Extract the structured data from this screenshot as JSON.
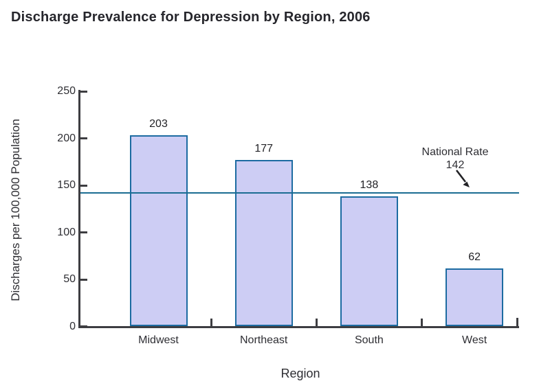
{
  "chart_data": {
    "type": "bar",
    "title": "Discharge Prevalence for Depression by Region, 2006",
    "xlabel": "Region",
    "ylabel": "Discharges per 100,000 Population",
    "categories": [
      "Midwest",
      "Northeast",
      "South",
      "West"
    ],
    "values": [
      203,
      177,
      138,
      62
    ],
    "ylim": [
      0,
      250
    ],
    "yticks": [
      0,
      50,
      100,
      150,
      200,
      250
    ],
    "grid": false,
    "legend": false,
    "reference_line": {
      "label": "National Rate",
      "value": 142,
      "color": "#1a6c92"
    },
    "colors": {
      "bar_fill": "#cdcdf4",
      "bar_border": "#1c6ba1",
      "axis": "#3d3d41",
      "text": "#2e2e33",
      "title": "#26262c"
    }
  }
}
